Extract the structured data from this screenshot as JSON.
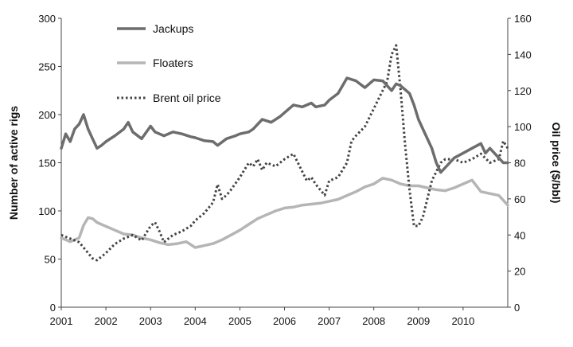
{
  "chart_data": {
    "type": "line",
    "xlabel": "",
    "x_ticks": [
      "2001",
      "2002",
      "2003",
      "2004",
      "2005",
      "2006",
      "2007",
      "2008",
      "2009",
      "2010"
    ],
    "xlim": [
      2001,
      2011
    ],
    "y_left": {
      "label": "Number of active rigs",
      "ylim": [
        0,
        300
      ],
      "ticks": [
        "0",
        "50",
        "100",
        "150",
        "200",
        "250",
        "300"
      ]
    },
    "y_right": {
      "label": "Oil price ($/bbl)",
      "ylim": [
        0,
        160
      ],
      "ticks": [
        "0",
        "20",
        "40",
        "60",
        "80",
        "100",
        "120",
        "140",
        "160"
      ]
    },
    "grid": false,
    "legend_position": "top-left",
    "series": [
      {
        "name": "Jackups",
        "axis": "left",
        "color": "#6d6d6d",
        "style": "solid",
        "x": [
          2001.0,
          2001.1,
          2001.2,
          2001.3,
          2001.4,
          2001.5,
          2001.6,
          2001.7,
          2001.8,
          2001.9,
          2002.0,
          2002.2,
          2002.4,
          2002.5,
          2002.6,
          2002.8,
          2003.0,
          2003.1,
          2003.3,
          2003.5,
          2003.7,
          2003.9,
          2004.0,
          2004.2,
          2004.4,
          2004.5,
          2004.7,
          2004.9,
          2005.0,
          2005.2,
          2005.3,
          2005.5,
          2005.7,
          2005.9,
          2006.0,
          2006.2,
          2006.4,
          2006.6,
          2006.7,
          2006.9,
          2007.0,
          2007.2,
          2007.4,
          2007.6,
          2007.8,
          2008.0,
          2008.2,
          2008.4,
          2008.5,
          2008.6,
          2008.8,
          2008.9,
          2009.0,
          2009.1,
          2009.3,
          2009.4,
          2009.5,
          2009.6,
          2009.7,
          2009.8,
          2010.0,
          2010.2,
          2010.4,
          2010.5,
          2010.6,
          2010.8,
          2010.9,
          2011.0
        ],
        "values": [
          165,
          180,
          172,
          185,
          190,
          200,
          185,
          175,
          165,
          168,
          172,
          178,
          185,
          192,
          182,
          175,
          188,
          182,
          178,
          182,
          180,
          177,
          176,
          173,
          172,
          168,
          175,
          178,
          180,
          182,
          185,
          195,
          192,
          198,
          202,
          210,
          208,
          212,
          208,
          210,
          215,
          222,
          238,
          235,
          228,
          236,
          235,
          225,
          232,
          230,
          222,
          210,
          195,
          185,
          165,
          150,
          140,
          145,
          150,
          155,
          160,
          165,
          170,
          160,
          165,
          155,
          150,
          150
        ]
      },
      {
        "name": "Floaters",
        "axis": "left",
        "color": "#b5b5b5",
        "style": "solid",
        "x": [
          2001.0,
          2001.2,
          2001.4,
          2001.5,
          2001.6,
          2001.7,
          2001.8,
          2002.0,
          2002.2,
          2002.4,
          2002.6,
          2002.8,
          2003.0,
          2003.2,
          2003.4,
          2003.6,
          2003.8,
          2004.0,
          2004.2,
          2004.4,
          2004.6,
          2004.8,
          2005.0,
          2005.2,
          2005.4,
          2005.6,
          2005.8,
          2006.0,
          2006.2,
          2006.4,
          2006.6,
          2006.8,
          2007.0,
          2007.2,
          2007.4,
          2007.6,
          2007.8,
          2008.0,
          2008.2,
          2008.4,
          2008.6,
          2008.8,
          2009.0,
          2009.2,
          2009.4,
          2009.6,
          2009.8,
          2010.0,
          2010.2,
          2010.4,
          2010.6,
          2010.8,
          2011.0
        ],
        "values": [
          72,
          68,
          72,
          85,
          93,
          92,
          88,
          84,
          80,
          76,
          75,
          72,
          70,
          67,
          65,
          66,
          68,
          62,
          64,
          66,
          70,
          75,
          80,
          86,
          92,
          96,
          100,
          103,
          104,
          106,
          107,
          108,
          110,
          112,
          116,
          120,
          125,
          128,
          134,
          132,
          128,
          126,
          126,
          124,
          122,
          121,
          124,
          128,
          132,
          120,
          118,
          116,
          106
        ]
      },
      {
        "name": "Brent oil price",
        "axis": "right",
        "color": "#444444",
        "style": "dotted",
        "x": [
          2001.0,
          2001.2,
          2001.4,
          2001.6,
          2001.7,
          2001.8,
          2001.9,
          2002.0,
          2002.2,
          2002.4,
          2002.6,
          2002.8,
          2003.0,
          2003.1,
          2003.2,
          2003.3,
          2003.5,
          2003.7,
          2003.9,
          2004.0,
          2004.2,
          2004.4,
          2004.5,
          2004.6,
          2004.7,
          2004.8,
          2005.0,
          2005.2,
          2005.3,
          2005.4,
          2005.5,
          2005.6,
          2005.8,
          2006.0,
          2006.2,
          2006.4,
          2006.5,
          2006.6,
          2006.7,
          2006.9,
          2007.0,
          2007.2,
          2007.4,
          2007.5,
          2007.6,
          2007.8,
          2008.0,
          2008.1,
          2008.3,
          2008.4,
          2008.5,
          2008.6,
          2008.7,
          2008.8,
          2008.9,
          2009.0,
          2009.1,
          2009.2,
          2009.3,
          2009.4,
          2009.5,
          2009.6,
          2009.8,
          2010.0,
          2010.2,
          2010.4,
          2010.6,
          2010.8,
          2010.9,
          2011.0
        ],
        "values": [
          40,
          38,
          36,
          30,
          27,
          26,
          28,
          30,
          35,
          38,
          40,
          37,
          45,
          47,
          42,
          36,
          40,
          42,
          45,
          48,
          52,
          58,
          68,
          60,
          62,
          65,
          72,
          80,
          78,
          82,
          76,
          80,
          78,
          82,
          85,
          75,
          70,
          72,
          68,
          62,
          70,
          72,
          80,
          92,
          95,
          100,
          110,
          115,
          125,
          140,
          145,
          120,
          90,
          65,
          45,
          45,
          50,
          60,
          70,
          75,
          80,
          82,
          82,
          80,
          82,
          85,
          80,
          82,
          92,
          88
        ]
      }
    ]
  }
}
